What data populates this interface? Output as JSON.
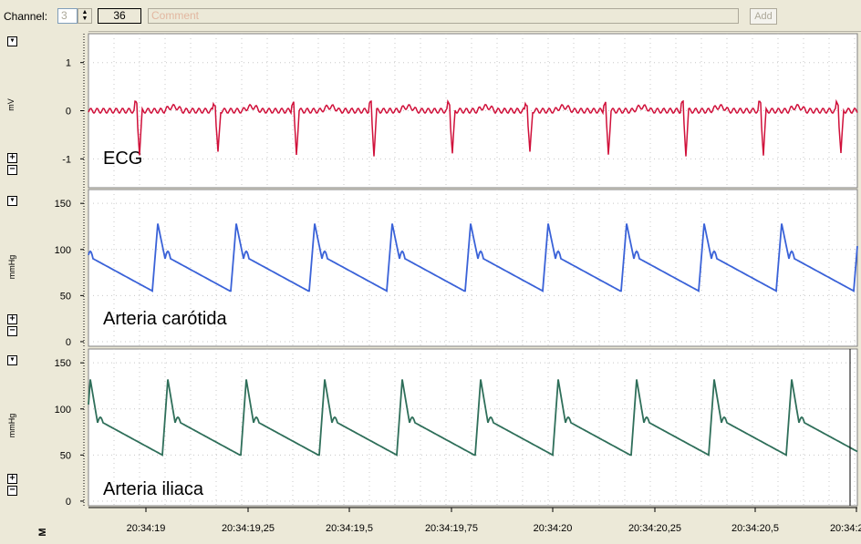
{
  "toolbar": {
    "channel_label": "Channel:",
    "channel_value": "3",
    "count_value": "36",
    "comment_placeholder": "Comment",
    "add_label": "Add"
  },
  "time_axis": {
    "labels": [
      "20:34:19",
      "20:34:19,25",
      "20:34:19,5",
      "20:34:19,75",
      "20:34:20",
      "20:34:20,25",
      "20:34:20,5",
      "20:34:20,75"
    ],
    "corner_icon": "M"
  },
  "colors": {
    "ecg": "#d0103a",
    "carotid": "#3a62d8",
    "iliac": "#2f6f5a",
    "grid": "#c8c8c8"
  },
  "channels": [
    {
      "title": "ECG",
      "unit": "mV",
      "ticks": [
        "1",
        "0",
        "-1"
      ],
      "tick_values": [
        1,
        0,
        -1
      ]
    },
    {
      "title": "Arteria carótida",
      "unit": "mmHg",
      "ticks": [
        "150",
        "100",
        "50",
        "0"
      ],
      "tick_values": [
        150,
        100,
        50,
        0
      ]
    },
    {
      "title": "Arteria iliaca",
      "unit": "mmHg",
      "ticks": [
        "150",
        "100",
        "50",
        "0"
      ],
      "tick_values": [
        150,
        100,
        50,
        0
      ]
    }
  ],
  "chart_data": [
    {
      "type": "line",
      "title": "ECG",
      "ylabel": "mV",
      "ylim": [
        -1.6,
        1.6
      ],
      "beat_times": [
        20.3419,
        20.34193,
        20.34197
      ]
    }
  ]
}
